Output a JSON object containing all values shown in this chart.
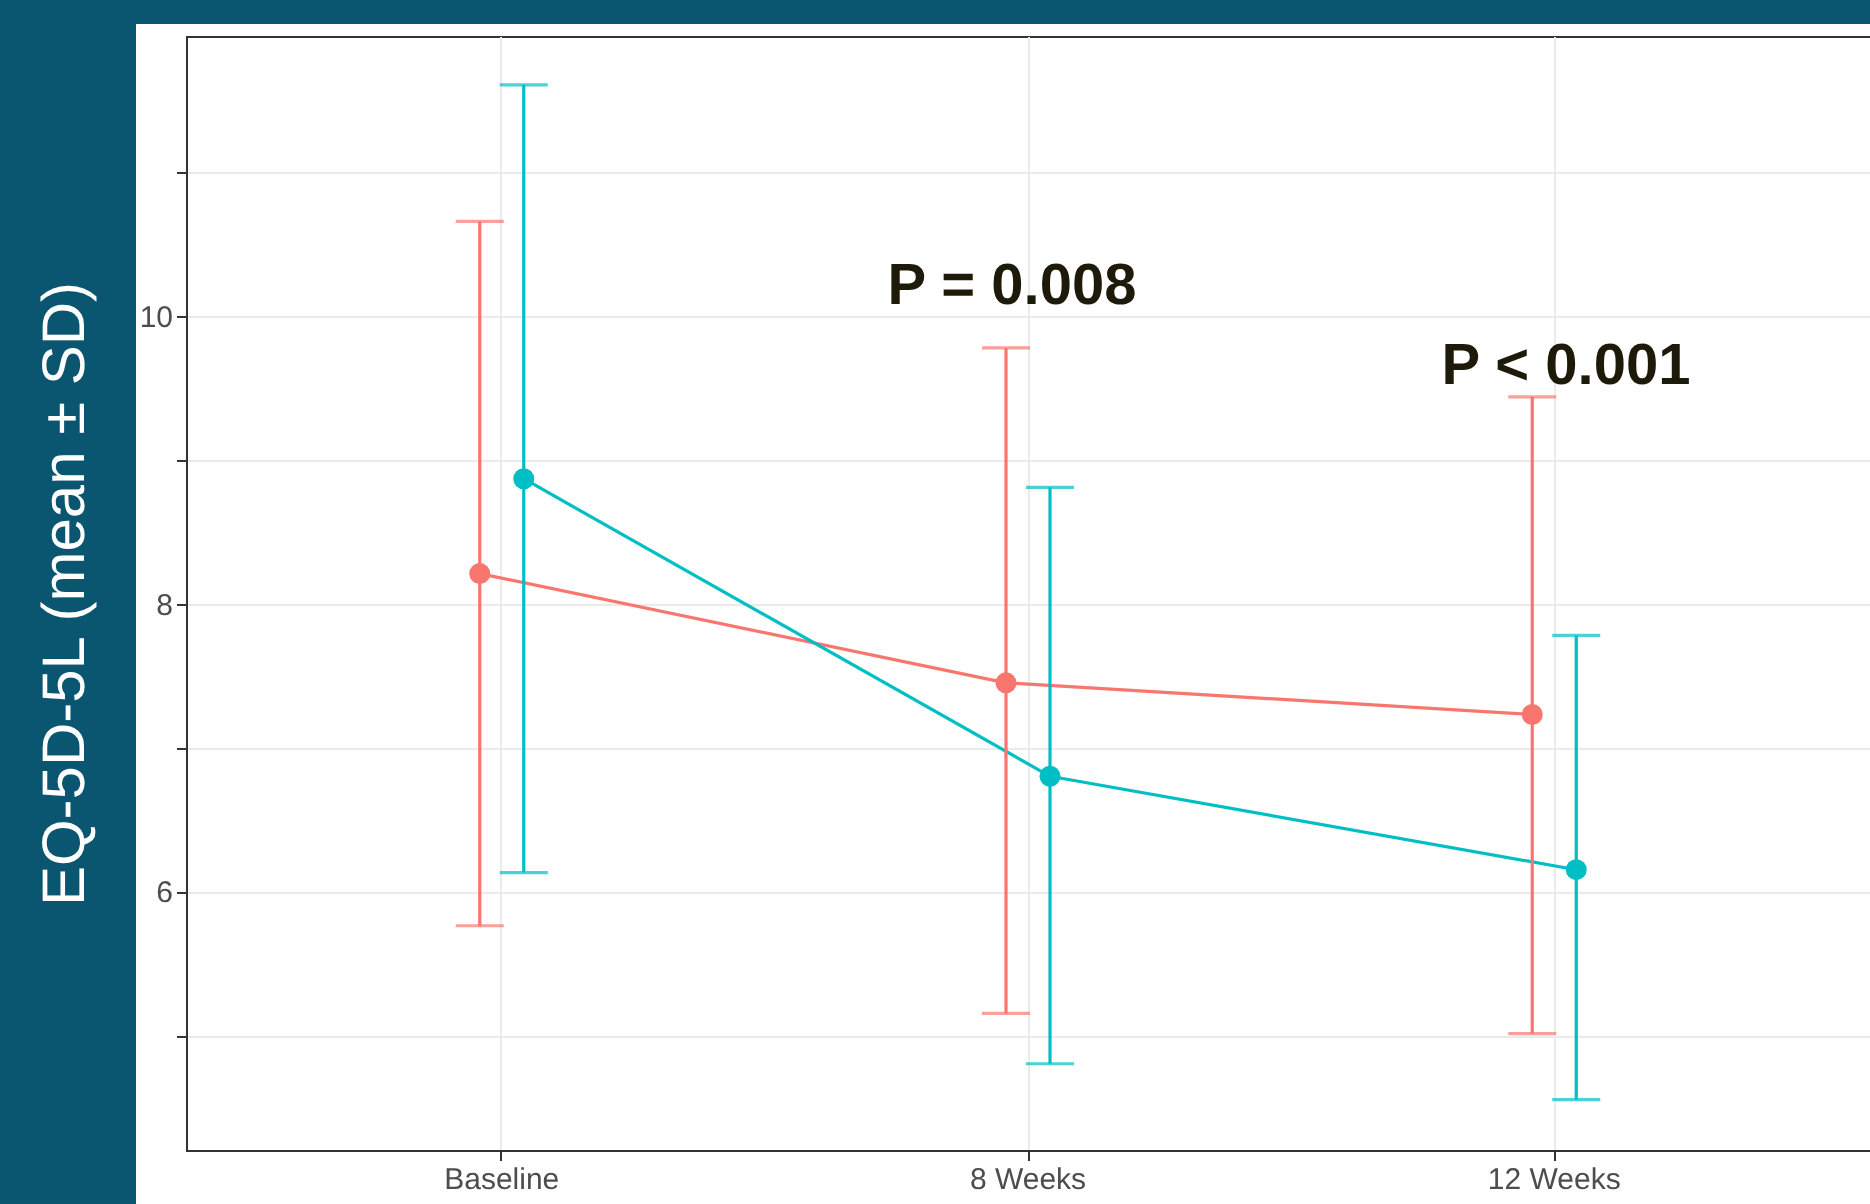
{
  "chart_data": {
    "type": "line",
    "ylabel": "EQ-5D-5L (mean ± SD)",
    "categories": [
      "Baseline",
      "8 Weeks",
      "12 Weeks"
    ],
    "series": [
      {
        "color": "#f8766d",
        "values": [
          8.21,
          7.45,
          7.23
        ],
        "errors": [
          [
            5.76,
            10.66
          ],
          [
            5.15,
            9.78
          ],
          [
            5.01,
            9.44
          ]
        ]
      },
      {
        "color": "#00bfc4",
        "values": [
          8.87,
          6.8,
          6.15
        ],
        "errors": [
          [
            6.13,
            11.61
          ],
          [
            4.8,
            8.81
          ],
          [
            4.55,
            7.78
          ]
        ]
      }
    ],
    "ylim": [
      4.2,
      11.95
    ],
    "yticks": [
      {
        "value": 5,
        "label": null
      },
      6,
      {
        "value": 7,
        "label": null
      },
      8,
      {
        "value": 9,
        "label": null
      },
      10,
      {
        "value": 11,
        "label": null
      }
    ],
    "grid": true,
    "marker": "circle",
    "annotations": [
      "P = 0.008",
      "P < 0.001"
    ]
  }
}
